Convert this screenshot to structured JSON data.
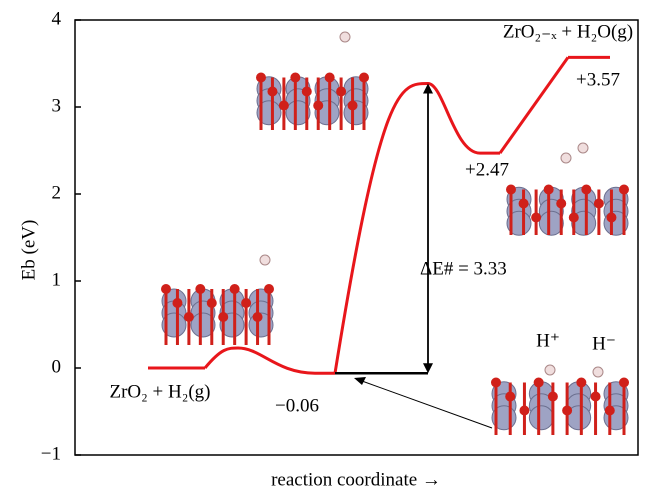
{
  "chart_data": {
    "type": "energy_profile",
    "ylabel": "Eb (eV)",
    "xlabel": "reaction coordinate →",
    "ylim": [
      -1,
      4
    ],
    "yticks": [
      {
        "value": -1,
        "label": "−1"
      },
      0,
      1,
      2,
      3,
      4
    ],
    "color": "#e8161b",
    "states": {
      "names": [
        "ZrO₂ + H₂(g)",
        null,
        null,
        "ZrO₂₋ₓ + H₂O(g)"
      ],
      "values": [
        0,
        -0.06,
        2.47,
        3.57
      ],
      "value_labels": [
        null,
        "−0.06",
        "+2.47",
        "+3.57"
      ]
    },
    "barriers": {
      "values": [
        0.23,
        3.27,
        null
      ]
    },
    "barrier_annotation": {
      "label": "ΔE# = 3.33",
      "value": 3.33
    },
    "species_labels": [
      "H⁺",
      "H⁻"
    ]
  }
}
